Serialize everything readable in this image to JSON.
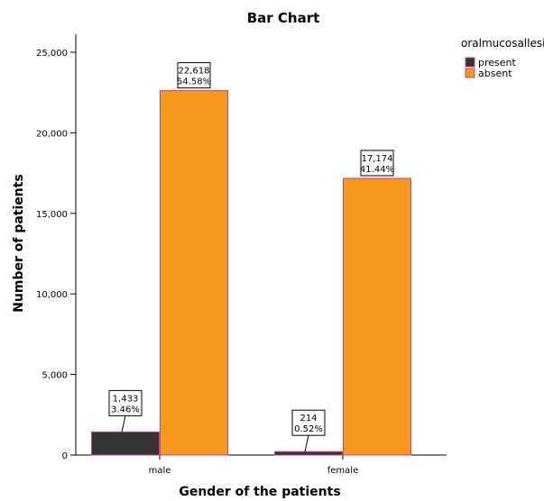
{
  "chart_data": {
    "type": "bar",
    "title": "Bar Chart",
    "xlabel": "Gender of the patients",
    "ylabel": "Number of patients",
    "categories": [
      "male",
      "female"
    ],
    "ylim": [
      0,
      25000
    ],
    "yticks": [
      0,
      5000,
      10000,
      15000,
      20000,
      25000
    ],
    "ytick_labels": [
      "0",
      "5,000",
      "10,000",
      "15,000",
      "20,000",
      "25,000"
    ],
    "grid": false,
    "legend": {
      "title": "oralmucosallesions",
      "position": "top-right"
    },
    "series": [
      {
        "name": "present",
        "color": "#333333",
        "values": [
          1433,
          214
        ],
        "labels": [
          [
            "1,433",
            "3.46%"
          ],
          [
            "214",
            "0.52%"
          ]
        ]
      },
      {
        "name": "absent",
        "color": "#f7981d",
        "values": [
          22618,
          17174
        ],
        "labels": [
          [
            "22,618",
            "54.58%"
          ],
          [
            "17,174",
            "41.44%"
          ]
        ]
      }
    ],
    "bar_edge_color": "#c0449a"
  }
}
